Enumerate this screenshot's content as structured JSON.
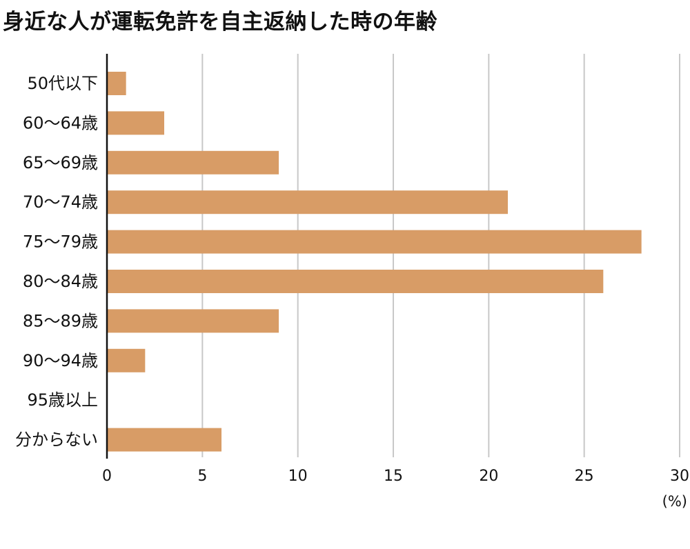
{
  "chart_data": {
    "type": "bar",
    "orientation": "horizontal",
    "title": "身近な人が運転免許を自主返納した時の年齢",
    "categories": [
      "50代以下",
      "60〜64歳",
      "65〜69歳",
      "70〜74歳",
      "75〜79歳",
      "80〜84歳",
      "85〜89歳",
      "90〜94歳",
      "95歳以上",
      "分からない"
    ],
    "values": [
      1,
      3,
      9,
      21,
      28,
      26,
      9,
      2,
      0,
      6
    ],
    "xlim": [
      0,
      30
    ],
    "xticks": [
      "0",
      "5",
      "10",
      "15",
      "20",
      "25",
      "30"
    ],
    "unit_label": "(%)",
    "grid": "vertical",
    "legend": "none",
    "bar_color": "#d89c66",
    "grid_color": "#c8c8c8"
  }
}
